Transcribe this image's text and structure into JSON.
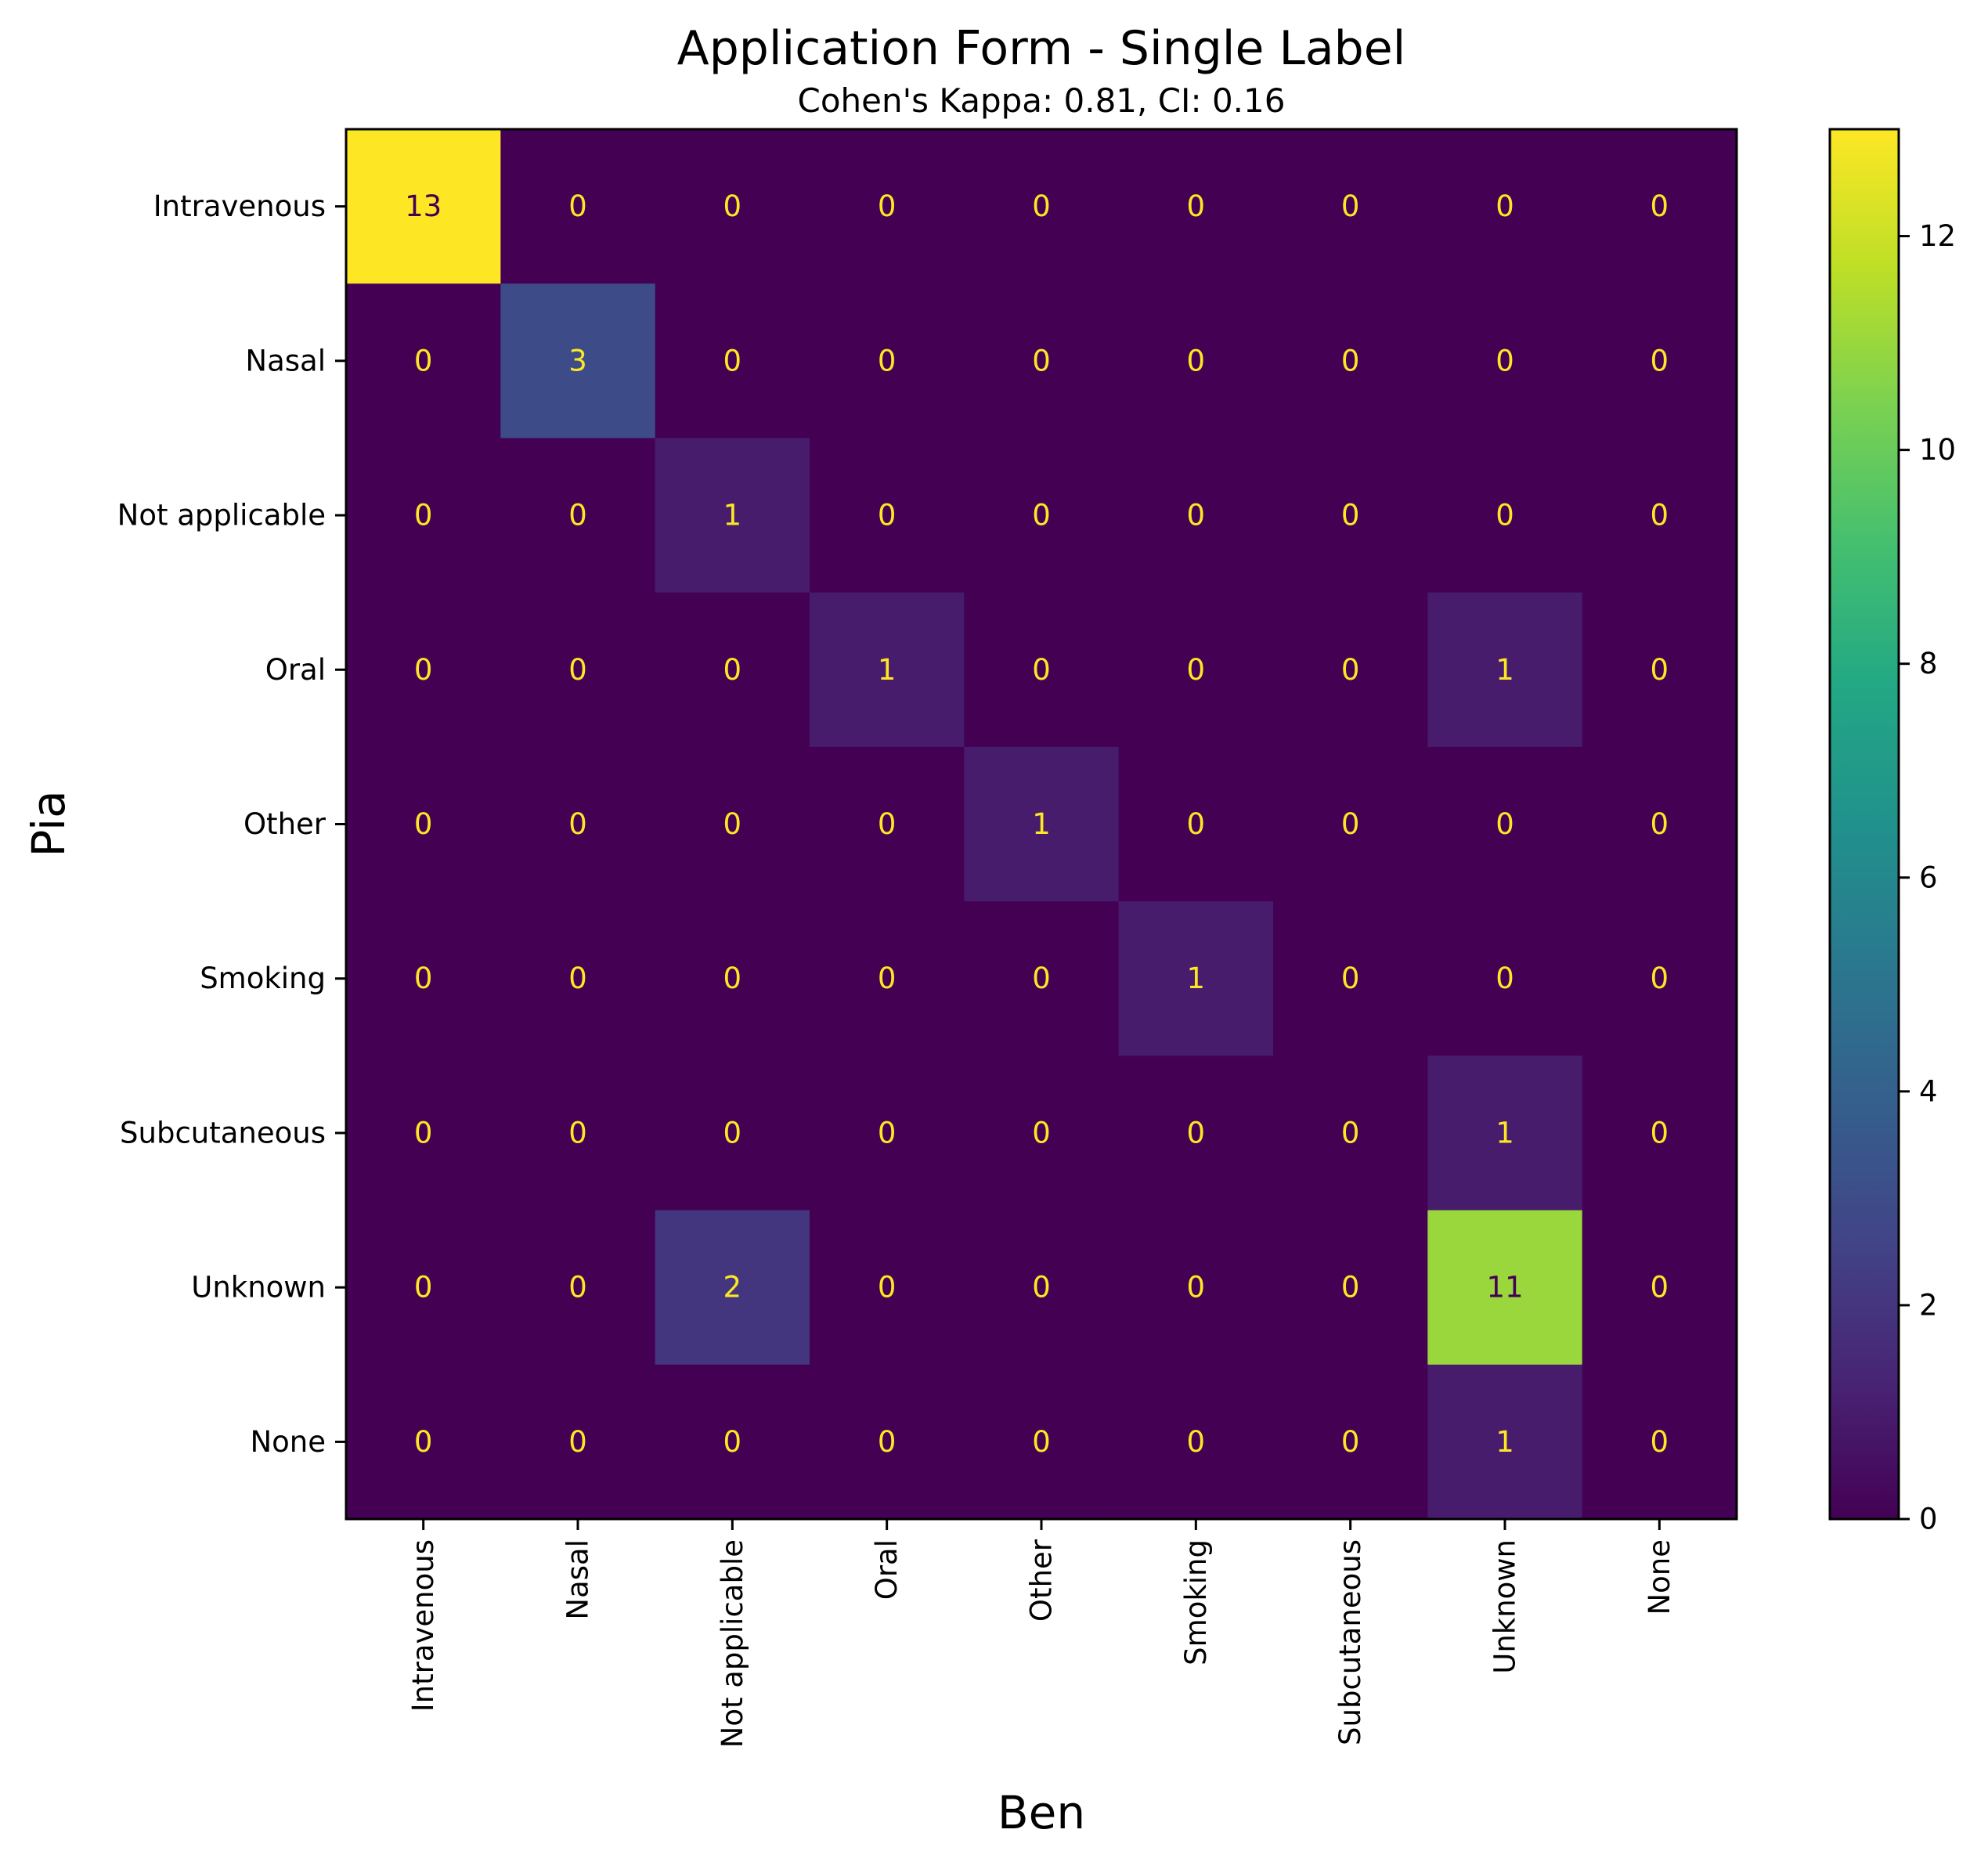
{
  "chart_data": {
    "type": "heatmap",
    "title": "Application Form - Single Label",
    "subtitle": "Cohen's Kappa: 0.81, CI: 0.16",
    "xlabel": "Ben",
    "ylabel": "Pia",
    "x_categories": [
      "Intravenous",
      "Nasal",
      "Not applicable",
      "Oral",
      "Other",
      "Smoking",
      "Subcutaneous",
      "Unknown",
      "None"
    ],
    "y_categories": [
      "Intravenous",
      "Nasal",
      "Not applicable",
      "Oral",
      "Other",
      "Smoking",
      "Subcutaneous",
      "Unknown",
      "None"
    ],
    "values": [
      [
        13,
        0,
        0,
        0,
        0,
        0,
        0,
        0,
        0
      ],
      [
        0,
        3,
        0,
        0,
        0,
        0,
        0,
        0,
        0
      ],
      [
        0,
        0,
        1,
        0,
        0,
        0,
        0,
        0,
        0
      ],
      [
        0,
        0,
        0,
        1,
        0,
        0,
        0,
        1,
        0
      ],
      [
        0,
        0,
        0,
        0,
        1,
        0,
        0,
        0,
        0
      ],
      [
        0,
        0,
        0,
        0,
        0,
        1,
        0,
        0,
        0
      ],
      [
        0,
        0,
        0,
        0,
        0,
        0,
        0,
        1,
        0
      ],
      [
        0,
        0,
        2,
        0,
        0,
        0,
        0,
        11,
        0
      ],
      [
        0,
        0,
        0,
        0,
        0,
        0,
        0,
        1,
        0
      ]
    ],
    "colormap": "viridis",
    "colorbar": {
      "range": [
        0,
        13
      ],
      "ticks": [
        0,
        2,
        4,
        6,
        8,
        10,
        12
      ]
    },
    "cell_text_colors": {
      "on_dark": "#fde725",
      "on_light": "#440154"
    }
  }
}
